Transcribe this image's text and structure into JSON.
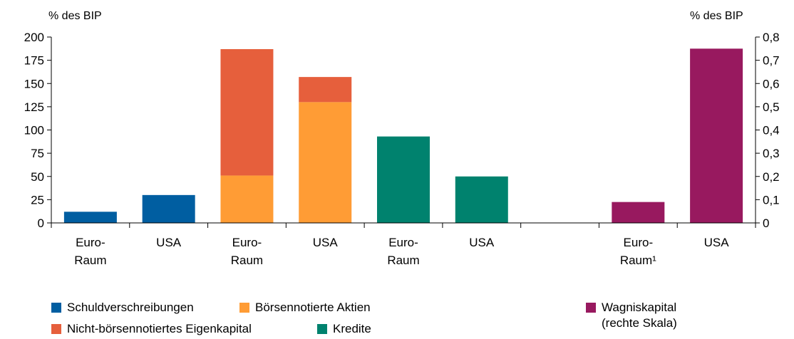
{
  "units": {
    "left": "% des BIP",
    "right": "% des BIP"
  },
  "colors": {
    "Schuldverschreibungen": "#005ea1",
    "Börsennotierte Aktien": "#ff9c35",
    "Nicht-börsennotiertes Eigenkapital": "#e65f3c",
    "Kredite": "#00826e",
    "Wagniskapital": "#98195f"
  },
  "chart_data": {
    "type": "bar",
    "stacked": true,
    "categories": [
      "Euro-\nRaum",
      "USA",
      "Euro-\nRaum",
      "USA",
      "Euro-\nRaum",
      "USA",
      "",
      "Euro-\nRaum¹",
      "USA"
    ],
    "series": [
      {
        "name": "Schuldverschreibungen",
        "axis": "left",
        "values": [
          12,
          30,
          null,
          null,
          null,
          null,
          null,
          null,
          null
        ]
      },
      {
        "name": "Börsennotierte Aktien",
        "axis": "left",
        "values": [
          null,
          null,
          51,
          130,
          null,
          null,
          null,
          null,
          null
        ]
      },
      {
        "name": "Nicht-börsennotiertes Eigenkapital",
        "axis": "left",
        "values": [
          null,
          null,
          136,
          27,
          null,
          null,
          null,
          null,
          null
        ]
      },
      {
        "name": "Kredite",
        "axis": "left",
        "values": [
          null,
          null,
          null,
          null,
          93,
          50,
          null,
          null,
          null
        ]
      },
      {
        "name": "Wagniskapital",
        "axis": "right",
        "values": [
          null,
          null,
          null,
          null,
          null,
          null,
          null,
          0.09,
          0.75
        ]
      }
    ],
    "y_left": {
      "ylim": [
        0,
        200
      ],
      "ticks": [
        "0",
        "25",
        "50",
        "75",
        "100",
        "125",
        "150",
        "175",
        "200"
      ]
    },
    "y_right": {
      "ylim": [
        0,
        0.8
      ],
      "ticks": [
        "0",
        "0,1",
        "0,2",
        "0,3",
        "0,4",
        "0,5",
        "0,6",
        "0,7",
        "0,8"
      ]
    },
    "grid": false,
    "legend_position": "bottom"
  },
  "legend": [
    {
      "label": "Schuldverschreibungen",
      "series": "Schuldverschreibungen"
    },
    {
      "label": "Börsennotierte Aktien",
      "series": "Börsennotierte Aktien"
    },
    {
      "label": "Nicht-börsennotiertes Eigenkapital",
      "series": "Nicht-börsennotiertes Eigenkapital"
    },
    {
      "label": "Kredite",
      "series": "Kredite"
    },
    {
      "label": "Wagniskapital\n(rechte Skala)",
      "series": "Wagniskapital"
    }
  ]
}
